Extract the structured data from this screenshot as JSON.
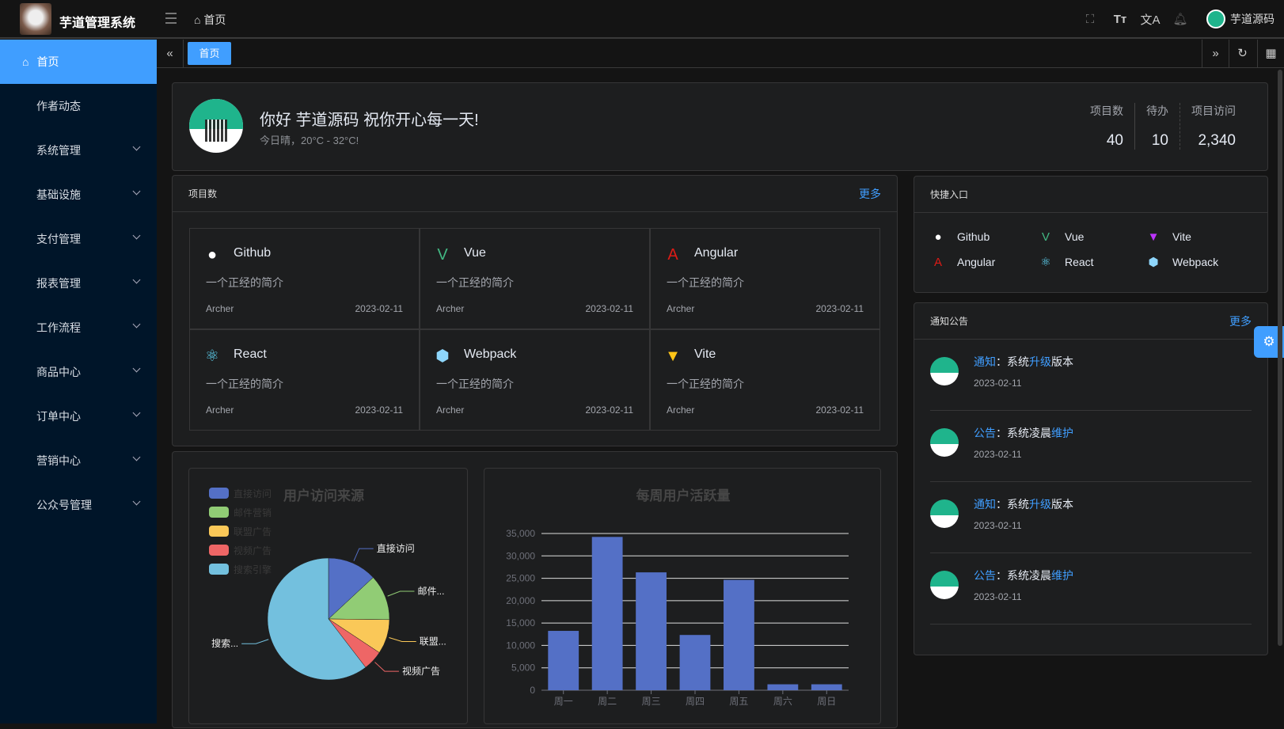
{
  "header": {
    "brand": "芋道管理系统",
    "breadcrumb": "首页",
    "username": "芋道源码",
    "icons": [
      "fullscreen-icon",
      "font-size-icon",
      "translate-icon",
      "bell-icon"
    ]
  },
  "sidebar": {
    "items": [
      {
        "label": "首页",
        "active": true
      },
      {
        "label": "作者动态"
      },
      {
        "label": "系统管理",
        "expandable": true
      },
      {
        "label": "基础设施",
        "expandable": true
      },
      {
        "label": "支付管理",
        "expandable": true
      },
      {
        "label": "报表管理",
        "expandable": true
      },
      {
        "label": "工作流程",
        "expandable": true
      },
      {
        "label": "商品中心",
        "expandable": true
      },
      {
        "label": "订单中心",
        "expandable": true
      },
      {
        "label": "营销中心",
        "expandable": true
      },
      {
        "label": "公众号管理",
        "expandable": true
      }
    ]
  },
  "tabs": {
    "items": [
      {
        "label": "首页",
        "active": true
      }
    ]
  },
  "welcome": {
    "greeting": "你好 芋道源码 祝你开心每一天!",
    "weather": "今日晴，20°C - 32°C!",
    "stats": [
      {
        "label": "项目数",
        "value": "40"
      },
      {
        "label": "待办",
        "value": "10"
      },
      {
        "label": "项目访问",
        "value": "2,340"
      }
    ]
  },
  "projects": {
    "title": "项目数",
    "more": "更多",
    "items": [
      {
        "name": "Github",
        "icon": "github-icon",
        "color": "#ffffff",
        "desc": "一个正经的简介",
        "author": "Archer",
        "date": "2023-02-11"
      },
      {
        "name": "Vue",
        "icon": "vue-icon",
        "color": "#42b883",
        "desc": "一个正经的简介",
        "author": "Archer",
        "date": "2023-02-11"
      },
      {
        "name": "Angular",
        "icon": "angular-icon",
        "color": "#dd1b16",
        "desc": "一个正经的简介",
        "author": "Archer",
        "date": "2023-02-11"
      },
      {
        "name": "React",
        "icon": "react-icon",
        "color": "#61dafb",
        "desc": "一个正经的简介",
        "author": "Archer",
        "date": "2023-02-11"
      },
      {
        "name": "Webpack",
        "icon": "webpack-icon",
        "color": "#8ed6fb",
        "desc": "一个正经的简介",
        "author": "Archer",
        "date": "2023-02-11"
      },
      {
        "name": "Vite",
        "icon": "vite-icon",
        "color": "#ffc517",
        "desc": "一个正经的简介",
        "author": "Archer",
        "date": "2023-02-11"
      }
    ]
  },
  "shortcuts": {
    "title": "快捷入口",
    "items": [
      {
        "name": "Github",
        "icon": "github-icon",
        "color": "#ffffff"
      },
      {
        "name": "Vue",
        "icon": "vue-icon",
        "color": "#42b883"
      },
      {
        "name": "Vite",
        "icon": "vite-icon",
        "color": "#bd34fe"
      },
      {
        "name": "Angular",
        "icon": "angular-icon",
        "color": "#dd1b16"
      },
      {
        "name": "React",
        "icon": "react-icon",
        "color": "#61dafb"
      },
      {
        "name": "Webpack",
        "icon": "webpack-icon",
        "color": "#8ed6fb"
      }
    ]
  },
  "notices": {
    "title": "通知公告",
    "more": "更多",
    "items": [
      {
        "type": "通知",
        "sep": "：",
        "pre": "系统",
        "hl": "升级",
        "post": "版本",
        "date": "2023-02-11"
      },
      {
        "type": "公告",
        "sep": "：",
        "pre": "系统凌晨",
        "hl": "维护",
        "post": "",
        "date": "2023-02-11"
      },
      {
        "type": "通知",
        "sep": "：",
        "pre": "系统",
        "hl": "升级",
        "post": "版本",
        "date": "2023-02-11"
      },
      {
        "type": "公告",
        "sep": "：",
        "pre": "系统凌晨",
        "hl": "维护",
        "post": "",
        "date": "2023-02-11"
      }
    ]
  },
  "chart_data": [
    {
      "type": "pie",
      "title": "用户访问来源",
      "legend_position": "top-left",
      "categories": [
        "直接访问",
        "邮件营销",
        "联盟广告",
        "视频广告",
        "搜索引擎"
      ],
      "values": [
        335,
        310,
        234,
        135,
        1548
      ],
      "slice_labels": [
        "直接访问",
        "邮件...",
        "联盟...",
        "视频广告",
        "搜索..."
      ],
      "colors": [
        "#5470c6",
        "#91cc75",
        "#fac858",
        "#ee6666",
        "#73c0de"
      ]
    },
    {
      "type": "bar",
      "title": "每周用户活跃量",
      "categories": [
        "周一",
        "周二",
        "周三",
        "周四",
        "周五",
        "周六",
        "周日"
      ],
      "values": [
        13253,
        34235,
        26321,
        12340,
        24643,
        1322,
        1324
      ],
      "ylim": [
        0,
        35000
      ],
      "yticks": [
        "0",
        "5,000",
        "10,000",
        "15,000",
        "20,000",
        "25,000",
        "30,000",
        "35,000"
      ],
      "grid": true,
      "color": "#5470c6"
    }
  ]
}
